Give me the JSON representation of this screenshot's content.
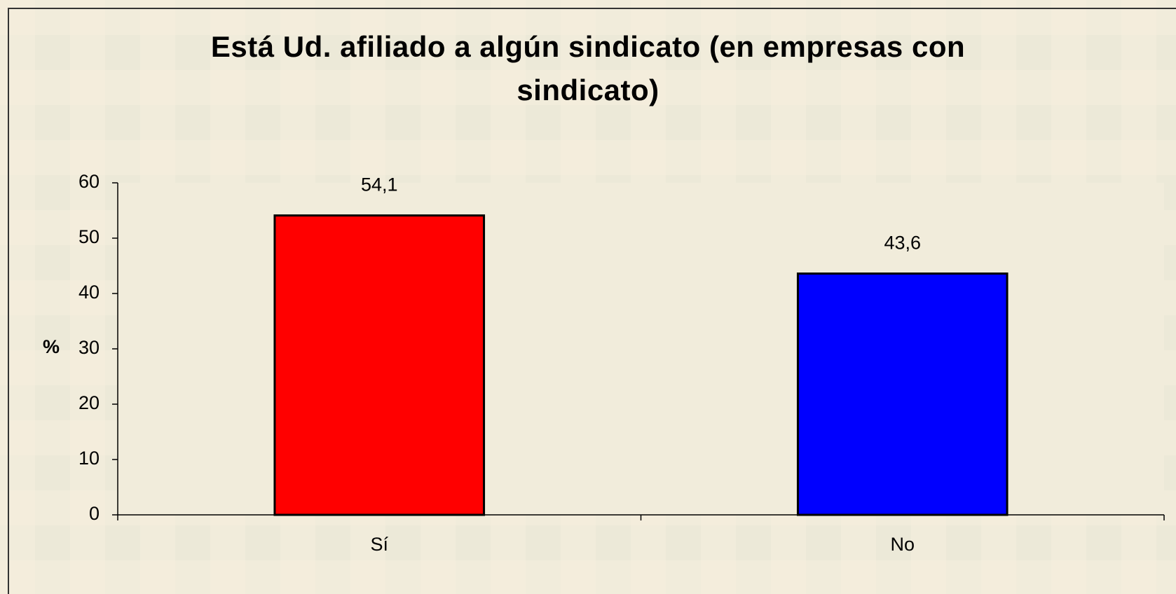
{
  "chart_data": {
    "type": "bar",
    "title": "Está Ud. afiliado a algún sindicato (en empresas con sindicato)",
    "y_label": "%",
    "categories": [
      "Sí",
      "No"
    ],
    "values": [
      54.1,
      43.6
    ],
    "value_labels": [
      "54,1",
      "43,6"
    ],
    "colors": [
      "#ff0000",
      "#0000ff"
    ],
    "ylim": [
      0,
      60
    ],
    "yticks": [
      0,
      10,
      20,
      30,
      40,
      50,
      60
    ],
    "grid": false
  }
}
